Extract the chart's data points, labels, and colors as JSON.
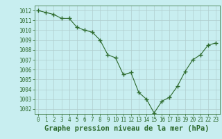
{
  "x": [
    0,
    1,
    2,
    3,
    4,
    5,
    6,
    7,
    8,
    9,
    10,
    11,
    12,
    13,
    14,
    15,
    16,
    17,
    18,
    19,
    20,
    21,
    22,
    23
  ],
  "y": [
    1012.0,
    1011.8,
    1011.6,
    1011.2,
    1011.2,
    1010.3,
    1010.0,
    1009.8,
    1009.0,
    1007.5,
    1007.2,
    1005.5,
    1005.7,
    1003.7,
    1003.0,
    1001.6,
    1002.8,
    1003.2,
    1004.3,
    1005.8,
    1007.0,
    1007.5,
    1008.5,
    1008.7
  ],
  "line_color": "#2d6a2d",
  "marker_color": "#2d6a2d",
  "bg_color": "#c8eef0",
  "grid_color": "#b0cece",
  "title": "Graphe pression niveau de la mer (hPa)",
  "ylim": [
    1001.5,
    1012.5
  ],
  "xlim": [
    -0.5,
    23.5
  ],
  "yticks": [
    1002,
    1003,
    1004,
    1005,
    1006,
    1007,
    1008,
    1009,
    1010,
    1011,
    1012
  ],
  "xticks": [
    0,
    1,
    2,
    3,
    4,
    5,
    6,
    7,
    8,
    9,
    10,
    11,
    12,
    13,
    14,
    15,
    16,
    17,
    18,
    19,
    20,
    21,
    22,
    23
  ],
  "title_fontsize": 7.5,
  "tick_fontsize": 5.5
}
